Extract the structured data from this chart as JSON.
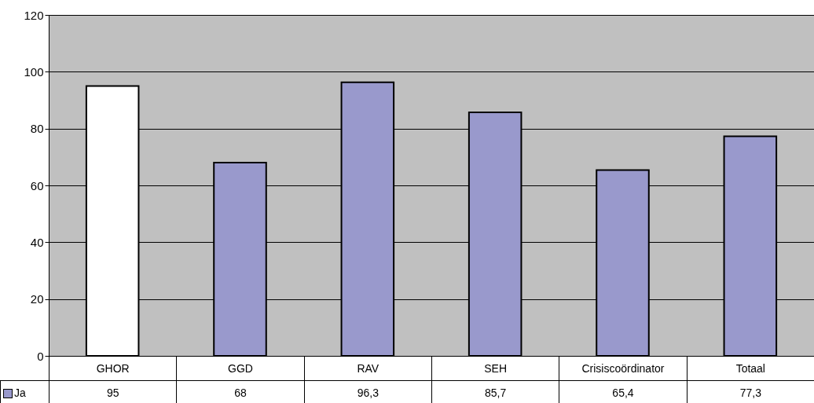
{
  "chart_data": {
    "type": "bar",
    "categories": [
      "GHOR",
      "GGD",
      "RAV",
      "SEH",
      "Crisiscoördinator",
      "Totaal"
    ],
    "series": [
      {
        "name": "Ja",
        "color": "#9999cc",
        "colors": [
          "#ffffff",
          "#9999cc",
          "#9999cc",
          "#9999cc",
          "#9999cc",
          "#9999cc"
        ],
        "values": [
          95,
          68,
          96.3,
          85.7,
          65.4,
          77.3
        ],
        "value_labels": [
          "95",
          "68",
          "96,3",
          "85,7",
          "65,4",
          "77,3"
        ]
      }
    ],
    "ylim": [
      0,
      120
    ],
    "yticks": [
      0,
      20,
      40,
      60,
      80,
      100,
      120
    ],
    "grid": "y",
    "legend": "bottom left"
  }
}
